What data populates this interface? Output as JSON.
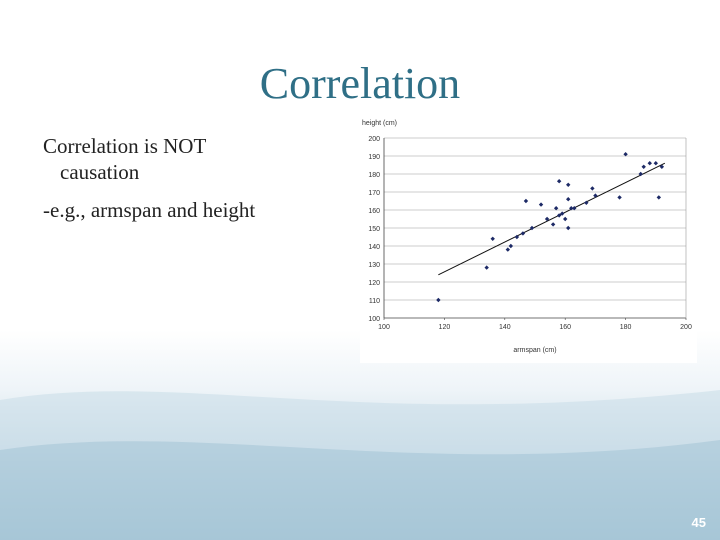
{
  "slide": {
    "title": "Correlation",
    "bullets": [
      {
        "line1": "Correlation is NOT",
        "line2": "causation"
      },
      {
        "line1": "-e.g., armspan and height"
      }
    ],
    "page_number": "45"
  },
  "chart_data": {
    "type": "scatter",
    "xlabel": "armspan (cm)",
    "ylabel": "height (cm)",
    "xlim": [
      100,
      200
    ],
    "ylim": [
      100,
      200
    ],
    "xticks": [
      100,
      120,
      140,
      160,
      180,
      200
    ],
    "yticks": [
      100,
      110,
      120,
      130,
      140,
      150,
      160,
      170,
      180,
      190,
      200
    ],
    "grid": "horizontal",
    "trendline": {
      "x": [
        118,
        193
      ],
      "y": [
        124,
        186
      ]
    },
    "points": [
      [
        118,
        110
      ],
      [
        134,
        128
      ],
      [
        136,
        144
      ],
      [
        141,
        138
      ],
      [
        142,
        140
      ],
      [
        144,
        145
      ],
      [
        146,
        147
      ],
      [
        147,
        165
      ],
      [
        149,
        150
      ],
      [
        152,
        163
      ],
      [
        154,
        155
      ],
      [
        156,
        152
      ],
      [
        157,
        161
      ],
      [
        158,
        176
      ],
      [
        158,
        157
      ],
      [
        159,
        158
      ],
      [
        160,
        155
      ],
      [
        161,
        150
      ],
      [
        161,
        166
      ],
      [
        161,
        174
      ],
      [
        162,
        161
      ],
      [
        163,
        161
      ],
      [
        167,
        164
      ],
      [
        169,
        172
      ],
      [
        170,
        168
      ],
      [
        178,
        167
      ],
      [
        180,
        191
      ],
      [
        185,
        180
      ],
      [
        186,
        184
      ],
      [
        188,
        186
      ],
      [
        190,
        186
      ],
      [
        191,
        167
      ],
      [
        192,
        184
      ]
    ]
  }
}
